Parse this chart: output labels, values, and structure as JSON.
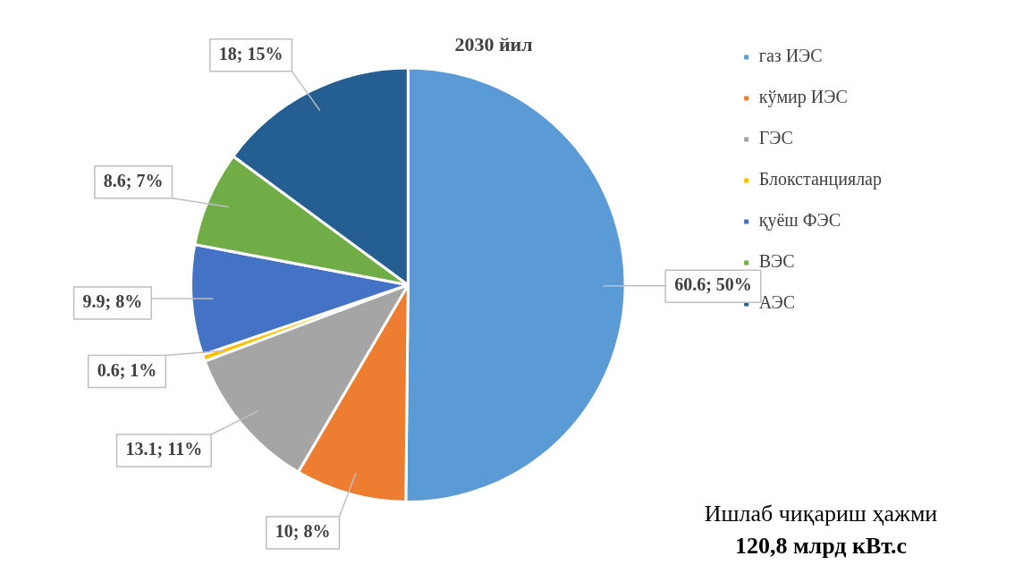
{
  "chart_data": {
    "type": "pie",
    "title": "2030 йил",
    "categories": [
      "газ ИЭС",
      "кўмир ИЭС",
      "ГЭС",
      "Блокстанциялар",
      "қуёш ФЭС",
      "ВЭС",
      "АЭС"
    ],
    "values": [
      60.6,
      10,
      13.1,
      0.6,
      9.9,
      8.6,
      18
    ],
    "colors": [
      "#5b9bd5",
      "#ed7d31",
      "#a5a5a5",
      "#ffc000",
      "#4472c4",
      "#70ad47",
      "#255e91"
    ],
    "value_labels": [
      "60.6; 50%",
      "10; 8%",
      "13.1; 11%",
      "0.6; 1%",
      "9.9; 8%",
      "8.6; 7%",
      "18; 15%"
    ],
    "legend": "right",
    "annotations": [
      "Ишлаб чиқариш ҳажми",
      "120,8 млрд кВт.с"
    ]
  }
}
